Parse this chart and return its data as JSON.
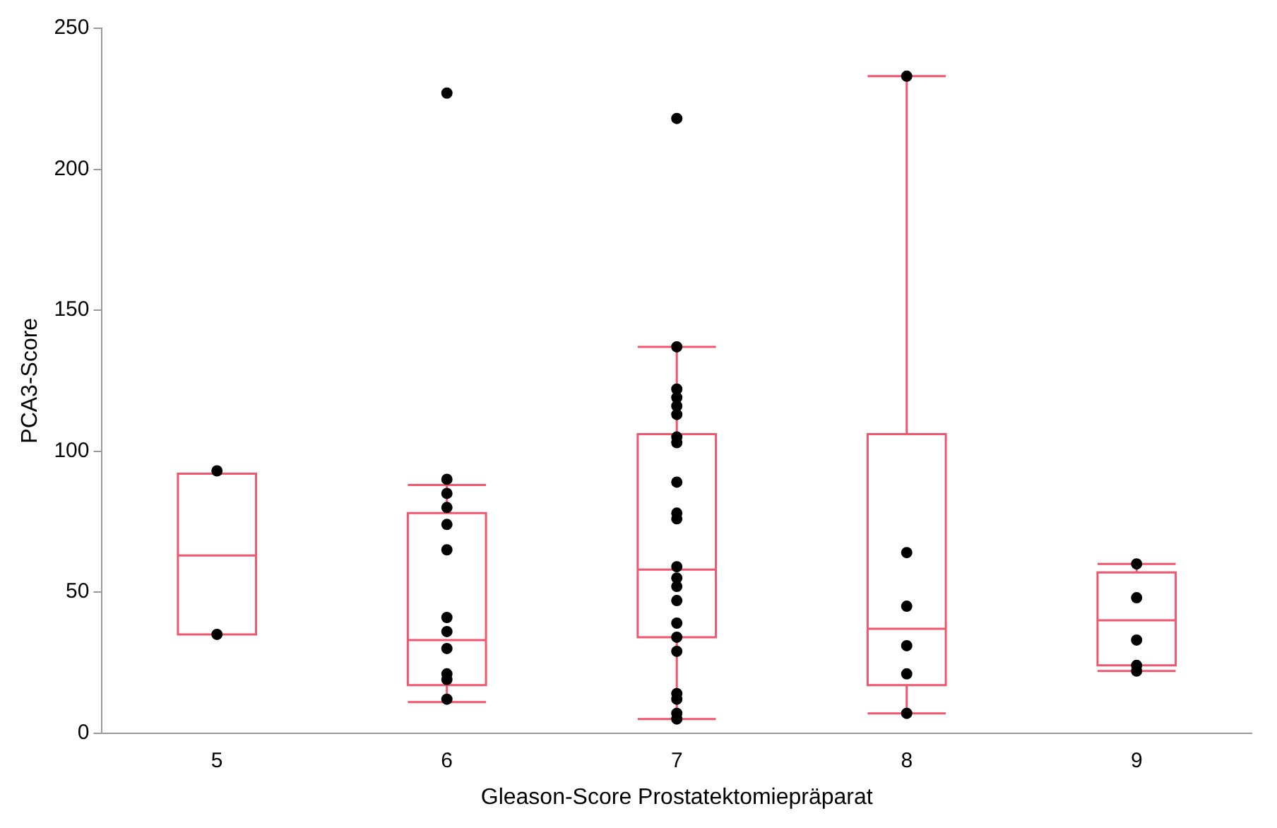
{
  "chart_data": {
    "type": "box",
    "xlabel": "Gleason-Score Prostatektomiepräparat",
    "ylabel": "PCA3-Score",
    "categories": [
      "5",
      "6",
      "7",
      "8",
      "9"
    ],
    "ylim": [
      0,
      250
    ],
    "yticks": [
      0,
      50,
      100,
      150,
      200,
      250
    ],
    "grid": false,
    "legend": false,
    "series": [
      {
        "type": "box",
        "color": "#f0566e",
        "boxes": [
          {
            "low": 35,
            "q1": 35,
            "median": 63,
            "q3": 92,
            "high": 92
          },
          {
            "low": 11,
            "q1": 17,
            "median": 33,
            "q3": 78,
            "high": 88
          },
          {
            "low": 5,
            "q1": 34,
            "median": 58,
            "q3": 106,
            "high": 137
          },
          {
            "low": 7,
            "q1": 17,
            "median": 37,
            "q3": 106,
            "high": 233
          },
          {
            "low": 22,
            "q1": 24,
            "median": 40,
            "q3": 57,
            "high": 60
          }
        ]
      },
      {
        "type": "scatter",
        "color": "#000000",
        "marker": "circle",
        "x": [
          "5",
          "5",
          "6",
          "6",
          "6",
          "6",
          "6",
          "6",
          "6",
          "6",
          "6",
          "6",
          "6",
          "6",
          "7",
          "7",
          "7",
          "7",
          "7",
          "7",
          "7",
          "7",
          "7",
          "7",
          "7",
          "7",
          "7",
          "7",
          "7",
          "7",
          "7",
          "7",
          "7",
          "7",
          "7",
          "7",
          "8",
          "8",
          "8",
          "8",
          "8",
          "8",
          "9",
          "9",
          "9",
          "9",
          "9"
        ],
        "values": [
          93,
          35,
          227,
          90,
          85,
          80,
          74,
          65,
          41,
          36,
          30,
          21,
          19,
          12,
          218,
          137,
          122,
          119,
          116,
          113,
          105,
          103,
          89,
          78,
          76,
          59,
          55,
          52,
          47,
          39,
          34,
          29,
          14,
          12,
          7,
          5,
          233,
          64,
          45,
          31,
          21,
          7,
          60,
          48,
          33,
          24,
          22
        ]
      }
    ]
  }
}
